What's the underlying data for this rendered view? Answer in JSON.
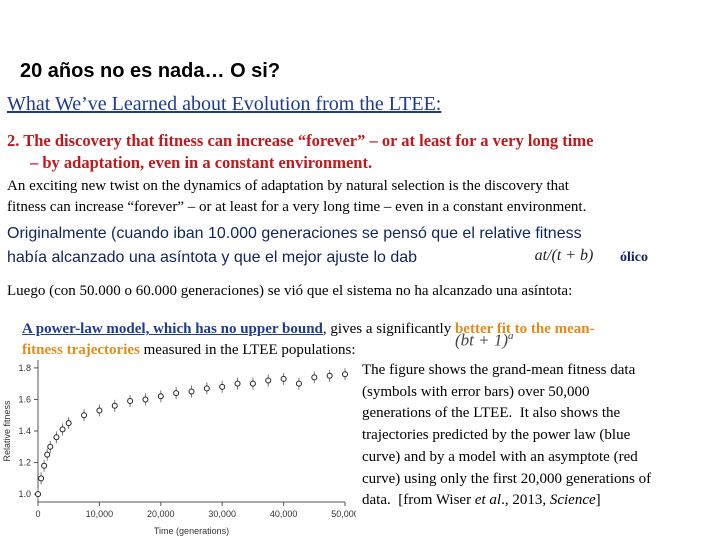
{
  "title": "20 años no es nada… O si?",
  "subtitle": "What We’ve Learned about Evolution from the LTEE:",
  "point": {
    "lines": [
      "2. The discovery that fitness can increase “forever” – or at least for a very long time",
      "– by adaptation, even in a constant environment."
    ]
  },
  "paragraph_en": {
    "lines": [
      "An exciting new twist on the dynamics of adaptation by natural selection is the discovery that",
      "fitness can increase “forever” – or at least for a very long time – even in a constant environment."
    ]
  },
  "paragraph_es": {
    "line1": "Originalmente (cuando iban 10.000 generaciones se pensó que el relative fitness",
    "line2": "había alcanzado una asíntota y que el mejor ajuste lo dab",
    "formula": "at/(t + b)",
    "line2_end": "ólico"
  },
  "paragraph_2": {
    "line1": "Luego (con 50.000 o 60.000 generaciones) se vió que el sistema no ha alcanzado una asíntota:",
    "line2_link": "A power-law model, which has no upper bound",
    "line2_mid": ", gives a significantly ",
    "line2_hl": "better fit to the mean-",
    "line3_hl": "fitness trajectories",
    "line3_post": " measured in the LTEE populations:"
  },
  "formula2": {
    "base": "(bt + 1)",
    "exp": "a"
  },
  "figure": {
    "ylabel": "Relative fitness",
    "xlabel": "Time (generations)",
    "xlim": [
      0,
      50000
    ],
    "ylim": [
      0.95,
      1.85
    ],
    "xticks": [
      0,
      {
        "value": 10000,
        "label": "10,000"
      },
      {
        "value": 20000,
        "label": "20,000"
      },
      {
        "value": 30000,
        "label": "30,000"
      },
      {
        "value": 40000,
        "label": "40,000"
      },
      {
        "value": 50000,
        "label": "50,000"
      }
    ],
    "yticks": [
      {
        "value": 1,
        "label": "1.0"
      },
      {
        "value": 1.2,
        "label": "1.2"
      },
      {
        "value": 1.4,
        "label": "1.4"
      },
      {
        "value": 1.6,
        "label": "1.6"
      },
      {
        "value": 1.8,
        "label": "1.8"
      }
    ],
    "x": [
      0,
      500,
      1000,
      1500,
      2000,
      3000,
      4000,
      5000,
      7500,
      10000,
      12500,
      15000,
      17500,
      20000,
      22500,
      25000,
      27500,
      30000,
      32500,
      35000,
      37500,
      40000,
      42500,
      45000,
      47500,
      50000
    ],
    "values": [
      1.0,
      1.1,
      1.18,
      1.25,
      1.3,
      1.36,
      1.41,
      1.45,
      1.5,
      1.53,
      1.56,
      1.59,
      1.6,
      1.62,
      1.64,
      1.65,
      1.67,
      1.68,
      1.7,
      1.7,
      1.72,
      1.73,
      1.7,
      1.74,
      1.75,
      1.76
    ]
  },
  "caption": {
    "lines": [
      "The figure shows the grand-mean fitness data",
      "(symbols with error bars) over 50,000",
      "generations of the LTEE.  It also shows the",
      "trajectories predicted by the power law (blue",
      "curve) and by a model with an asymptote (red",
      "curve) using only the first 20,000 generations of"
    ],
    "last_a": "data.  [from Wiser ",
    "last_b": "et al",
    "last_c": "., 2013, ",
    "last_d": "Science",
    "last_e": "]"
  }
}
